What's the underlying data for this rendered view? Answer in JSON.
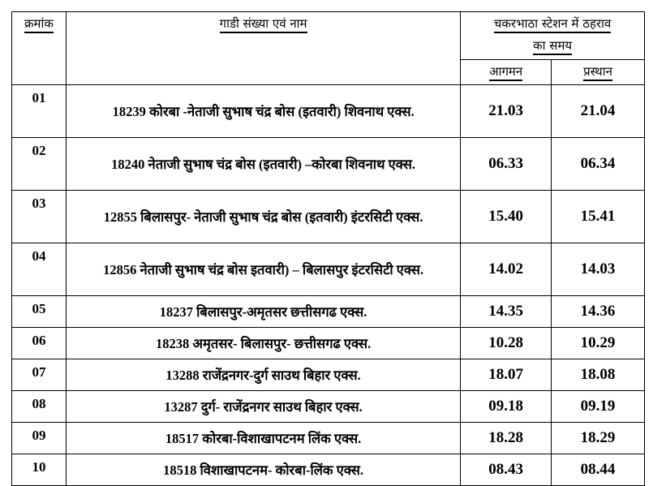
{
  "header": {
    "serial": "क्रमांक",
    "train": "गाडी संख्या एवं नाम",
    "stop_time_line1": "चकरभाठा स्टेशन में ठहराव",
    "stop_time_line2": "का समय",
    "arrival": "आगमन",
    "departure": "प्रस्थान"
  },
  "rows": [
    {
      "sn": "01",
      "name": "18239 कोरबा -नेताजी सुभाष चंद्र बोस (इतवारी)  शिवनाथ एक्स.",
      "arr": "21.03",
      "dep": "21.04"
    },
    {
      "sn": "02",
      "name": "18240 नेताजी सुभाष चंद्र बोस (इतवारी) –कोरबा शिवनाथ एक्स.",
      "arr": "06.33",
      "dep": "06.34"
    },
    {
      "sn": "03",
      "name": "12855 बिलासपुर- नेताजी सुभाष चंद्र बोस (इतवारी) इंटरसिटी एक्स.",
      "arr": "15.40",
      "dep": "15.41"
    },
    {
      "sn": "04",
      "name": "12856 नेताजी सुभाष चंद्र बोस इतवारी) – बिलासपुर इंटरसिटी एक्स.",
      "arr": "14.02",
      "dep": "14.03"
    },
    {
      "sn": "05",
      "name": "18237 बिलासपुर-अमृतसर छत्तीसगढ एक्स.",
      "arr": "14.35",
      "dep": "14.36"
    },
    {
      "sn": "06",
      "name": "18238 अमृतसर- बिलासपुर- छत्तीसगढ एक्स.",
      "arr": "10.28",
      "dep": "10.29"
    },
    {
      "sn": "07",
      "name": "13288 राजेंद्रनगर-दुर्ग साउथ बिहार एक्स.",
      "arr": "18.07",
      "dep": "18.08"
    },
    {
      "sn": "08",
      "name": "13287 दुर्ग- राजेंद्रनगर साउथ बिहार एक्स.",
      "arr": "09.18",
      "dep": "09.19"
    },
    {
      "sn": "09",
      "name": "18517 कोरबा-विशाखापटनम लिंक एक्स.",
      "arr": "18.28",
      "dep": "18.29"
    },
    {
      "sn": "10",
      "name": "18518 विशाखापटनम- कोरबा-लिंक एक्स.",
      "arr": "08.43",
      "dep": "08.44"
    }
  ]
}
